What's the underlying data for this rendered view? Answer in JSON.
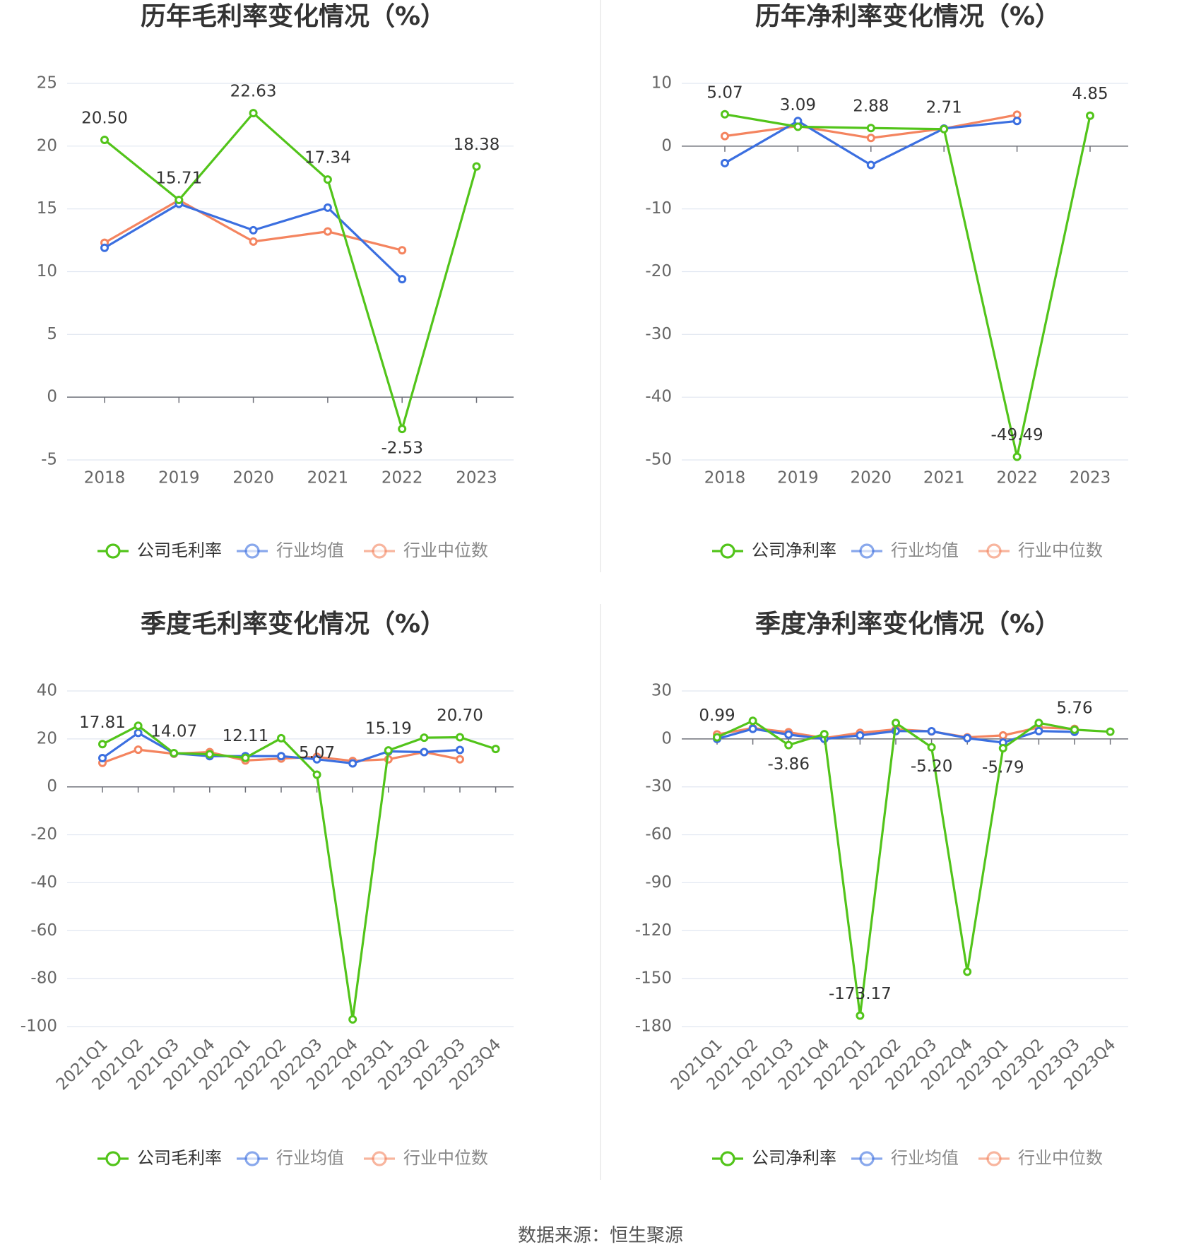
{
  "source_text": "数据来源：恒生聚源",
  "colors": {
    "company": "#52c41a",
    "avg": "#3b6fe0",
    "median": "#f4845f"
  },
  "chart_data": [
    {
      "type": "line",
      "title": "历年毛利率变化情况（%）",
      "categories": [
        "2018",
        "2019",
        "2020",
        "2021",
        "2022",
        "2023"
      ],
      "ylim": [
        -5,
        25
      ],
      "yticks": [
        25,
        20,
        15,
        10,
        5,
        0,
        -5
      ],
      "series": [
        {
          "name": "公司毛利率",
          "values": [
            20.5,
            15.71,
            22.63,
            17.34,
            -2.53,
            18.38
          ],
          "labels": [
            "20.50",
            "15.71",
            "22.63",
            "17.34",
            "-2.53",
            "18.38"
          ]
        },
        {
          "name": "行业均值",
          "values": [
            11.9,
            15.4,
            13.3,
            15.1,
            9.4,
            null
          ]
        },
        {
          "name": "行业中位数",
          "values": [
            12.3,
            15.7,
            12.4,
            13.2,
            11.7,
            null
          ]
        }
      ]
    },
    {
      "type": "line",
      "title": "历年净利率变化情况（%）",
      "categories": [
        "2018",
        "2019",
        "2020",
        "2021",
        "2022",
        "2023"
      ],
      "ylim": [
        -50,
        10
      ],
      "yticks": [
        10,
        0,
        -10,
        -20,
        -30,
        -40,
        -50
      ],
      "series": [
        {
          "name": "公司净利率",
          "values": [
            5.07,
            3.09,
            2.88,
            2.71,
            -49.49,
            4.85
          ],
          "labels": [
            "5.07",
            "3.09",
            "2.88",
            "2.71",
            "-49.49",
            "4.85"
          ]
        },
        {
          "name": "行业均值",
          "values": [
            -2.7,
            4.0,
            -3.0,
            2.8,
            4.0,
            null
          ]
        },
        {
          "name": "行业中位数",
          "values": [
            1.6,
            3.2,
            1.3,
            2.8,
            5.0,
            null
          ]
        }
      ]
    },
    {
      "type": "line",
      "title": "季度毛利率变化情况（%）",
      "categories": [
        "2021Q1",
        "2021Q2",
        "2021Q3",
        "2021Q4",
        "2022Q1",
        "2022Q2",
        "2022Q3",
        "2022Q4",
        "2023Q1",
        "2023Q2",
        "2023Q3",
        "2023Q4"
      ],
      "ylim": [
        -100,
        40
      ],
      "yticks": [
        40,
        20,
        0,
        -20,
        -40,
        -60,
        -80,
        -100
      ],
      "series": [
        {
          "name": "公司毛利率",
          "values": [
            17.81,
            25.5,
            14.07,
            13.6,
            12.11,
            20.3,
            5.07,
            -97.0,
            15.19,
            20.5,
            20.7,
            15.8
          ],
          "labels": [
            "17.81",
            "",
            "14.07",
            "",
            "12.11",
            "",
            "5.07",
            "",
            "15.19",
            "",
            "20.70",
            ""
          ]
        },
        {
          "name": "行业均值",
          "values": [
            12.0,
            22.5,
            14.0,
            12.8,
            12.8,
            12.8,
            11.5,
            9.8,
            14.8,
            14.5,
            15.4,
            null
          ]
        },
        {
          "name": "行业中位数",
          "values": [
            10.0,
            15.5,
            13.8,
            14.5,
            11.0,
            11.8,
            12.5,
            10.8,
            11.5,
            14.5,
            11.5,
            null
          ]
        }
      ]
    },
    {
      "type": "line",
      "title": "季度净利率变化情况（%）",
      "categories": [
        "2021Q1",
        "2021Q2",
        "2021Q3",
        "2021Q4",
        "2022Q1",
        "2022Q2",
        "2022Q3",
        "2022Q4",
        "2023Q1",
        "2023Q2",
        "2023Q3",
        "2023Q4"
      ],
      "ylim": [
        -180,
        30
      ],
      "yticks": [
        30,
        0,
        -30,
        -60,
        -90,
        -120,
        -150,
        -180
      ],
      "series": [
        {
          "name": "公司净利率",
          "values": [
            0.99,
            11.3,
            -3.86,
            3.0,
            -173.17,
            10.0,
            -5.2,
            -145.7,
            -5.79,
            10.0,
            5.76,
            4.5
          ],
          "labels": [
            "0.99",
            "",
            "-3.86",
            "",
            "-173.17",
            "",
            "-5.20",
            "",
            "-5.79",
            "",
            "5.76",
            ""
          ]
        },
        {
          "name": "行业均值",
          "values": [
            0.0,
            6.3,
            2.7,
            0.0,
            2.2,
            4.9,
            4.8,
            0.5,
            -2.3,
            4.9,
            4.4,
            null
          ]
        },
        {
          "name": "行业中位数",
          "values": [
            2.8,
            6.8,
            4.2,
            0.5,
            3.8,
            6.0,
            4.7,
            1.0,
            2.2,
            7.2,
            6.3,
            null
          ]
        }
      ]
    }
  ]
}
